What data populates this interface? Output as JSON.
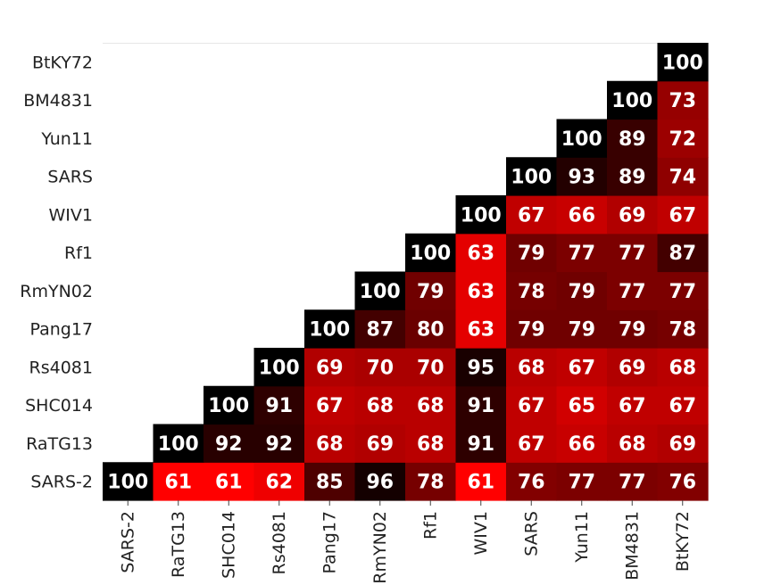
{
  "chart_data": {
    "type": "heatmap",
    "title": "",
    "xlabel": "",
    "ylabel": "",
    "shape": "lower-triangular",
    "categories": [
      "SARS-2",
      "RaTG13",
      "SHC014",
      "Rs4081",
      "Pang17",
      "RmYN02",
      "Rf1",
      "WIV1",
      "SARS",
      "Yun11",
      "BM4831",
      "BtKY72"
    ],
    "rows": [
      "SARS-2",
      "RaTG13",
      "SHC014",
      "Rs4081",
      "Pang17",
      "RmYN02",
      "Rf1",
      "WIV1",
      "SARS",
      "Yun11",
      "BM4831",
      "BtKY72"
    ],
    "values": [
      [
        100,
        61,
        61,
        62,
        85,
        96,
        78,
        61,
        76,
        77,
        77,
        76
      ],
      [
        null,
        100,
        92,
        92,
        68,
        69,
        68,
        91,
        67,
        66,
        68,
        69
      ],
      [
        null,
        null,
        100,
        91,
        67,
        68,
        68,
        91,
        67,
        65,
        67,
        67
      ],
      [
        null,
        null,
        null,
        100,
        69,
        70,
        70,
        95,
        68,
        67,
        69,
        68
      ],
      [
        null,
        null,
        null,
        null,
        100,
        87,
        80,
        63,
        79,
        79,
        79,
        78
      ],
      [
        null,
        null,
        null,
        null,
        null,
        100,
        79,
        63,
        78,
        79,
        77,
        77
      ],
      [
        null,
        null,
        null,
        null,
        null,
        null,
        100,
        63,
        79,
        77,
        77,
        87
      ],
      [
        null,
        null,
        null,
        null,
        null,
        null,
        null,
        100,
        67,
        66,
        69,
        67
      ],
      [
        null,
        null,
        null,
        null,
        null,
        null,
        null,
        null,
        100,
        93,
        89,
        74
      ],
      [
        null,
        null,
        null,
        null,
        null,
        null,
        null,
        null,
        null,
        100,
        89,
        72
      ],
      [
        null,
        null,
        null,
        null,
        null,
        null,
        null,
        null,
        null,
        null,
        100,
        73
      ],
      [
        null,
        null,
        null,
        null,
        null,
        null,
        null,
        null,
        null,
        null,
        null,
        100
      ]
    ],
    "colormap": {
      "low": "#ff0000",
      "high": "#000000",
      "min": 61,
      "max": 100
    },
    "value_text_color": "#ffffff",
    "grid": false,
    "legend": "none"
  }
}
